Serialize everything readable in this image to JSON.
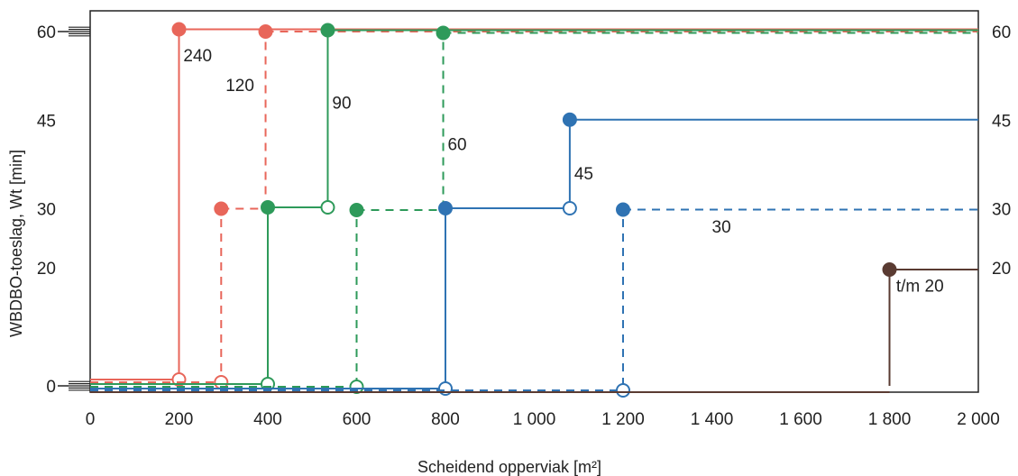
{
  "chart_data": {
    "type": "line",
    "step": true,
    "xlabel": "Scheidend opperviak [m²]",
    "ylabel": "WBDBO-toeslag, Wt [min]",
    "xlim": [
      0,
      2000
    ],
    "x_ticks": [
      0,
      200,
      400,
      600,
      800,
      1000,
      1200,
      1400,
      1600,
      1800,
      2000
    ],
    "x_tick_labels": [
      "0",
      "200",
      "400",
      "600",
      "800",
      "1 000",
      "1 200",
      "1 400",
      "1 600",
      "1 800",
      "2 000"
    ],
    "y_ticks": [
      0,
      20,
      30,
      45,
      60
    ],
    "y_tick_labels_left": [
      "0",
      "20",
      "30",
      "45",
      "60"
    ],
    "y_tick_labels_right": [
      "20",
      "30",
      "45",
      "60"
    ],
    "grid": false,
    "series": [
      {
        "name": "240",
        "color": "#e8665a",
        "dash": false,
        "segments": [
          {
            "x": [
              0,
              200
            ],
            "y": [
              0,
              0
            ],
            "start_marker": null,
            "end_marker": "open"
          },
          {
            "x": [
              200,
              200
            ],
            "y": [
              0,
              60
            ],
            "start_marker": null,
            "end_marker": null
          },
          {
            "x": [
              200,
              2000
            ],
            "y": [
              60,
              60
            ],
            "start_marker": "filled",
            "end_marker": null
          }
        ]
      },
      {
        "name": "120",
        "color": "#e8665a",
        "dash": true,
        "segments": [
          {
            "x": [
              0,
              295
            ],
            "y": [
              0,
              0
            ],
            "start_marker": null,
            "end_marker": "open"
          },
          {
            "x": [
              295,
              295
            ],
            "y": [
              0,
              30
            ],
            "start_marker": null,
            "end_marker": null
          },
          {
            "x": [
              295,
              395
            ],
            "y": [
              30,
              30
            ],
            "start_marker": "filled",
            "end_marker": null
          },
          {
            "x": [
              395,
              395
            ],
            "y": [
              30,
              60
            ],
            "start_marker": null,
            "end_marker": null
          },
          {
            "x": [
              395,
              2000
            ],
            "y": [
              60,
              60
            ],
            "start_marker": "filled",
            "end_marker": null
          }
        ]
      },
      {
        "name": "90",
        "color": "#2e9a5a",
        "dash": false,
        "segments": [
          {
            "x": [
              0,
              400
            ],
            "y": [
              0,
              0
            ],
            "start_marker": null,
            "end_marker": "open"
          },
          {
            "x": [
              400,
              400
            ],
            "y": [
              0,
              30
            ],
            "start_marker": null,
            "end_marker": null
          },
          {
            "x": [
              400,
              535
            ],
            "y": [
              30,
              30
            ],
            "start_marker": "filled",
            "end_marker": "open"
          },
          {
            "x": [
              535,
              535
            ],
            "y": [
              30,
              60
            ],
            "start_marker": null,
            "end_marker": null
          },
          {
            "x": [
              535,
              2000
            ],
            "y": [
              60,
              60
            ],
            "start_marker": "filled",
            "end_marker": null
          }
        ]
      },
      {
        "name": "60",
        "color": "#2e9a5a",
        "dash": true,
        "segments": [
          {
            "x": [
              0,
              600
            ],
            "y": [
              0,
              0
            ],
            "start_marker": null,
            "end_marker": "open"
          },
          {
            "x": [
              600,
              600
            ],
            "y": [
              0,
              30
            ],
            "start_marker": null,
            "end_marker": null
          },
          {
            "x": [
              600,
              795
            ],
            "y": [
              30,
              30
            ],
            "start_marker": "filled",
            "end_marker": null
          },
          {
            "x": [
              795,
              795
            ],
            "y": [
              30,
              60
            ],
            "start_marker": null,
            "end_marker": null
          },
          {
            "x": [
              795,
              2000
            ],
            "y": [
              60,
              60
            ],
            "start_marker": "filled",
            "end_marker": null
          }
        ]
      },
      {
        "name": "45",
        "color": "#2f73b3",
        "dash": false,
        "segments": [
          {
            "x": [
              0,
              800
            ],
            "y": [
              0,
              0
            ],
            "start_marker": null,
            "end_marker": "open"
          },
          {
            "x": [
              800,
              800
            ],
            "y": [
              0,
              30
            ],
            "start_marker": null,
            "end_marker": null
          },
          {
            "x": [
              800,
              1080
            ],
            "y": [
              30,
              30
            ],
            "start_marker": "filled",
            "end_marker": "open"
          },
          {
            "x": [
              1080,
              1080
            ],
            "y": [
              30,
              45
            ],
            "start_marker": null,
            "end_marker": null
          },
          {
            "x": [
              1080,
              2000
            ],
            "y": [
              45,
              45
            ],
            "start_marker": "filled",
            "end_marker": null
          }
        ]
      },
      {
        "name": "30",
        "color": "#2f73b3",
        "dash": true,
        "segments": [
          {
            "x": [
              0,
              1200
            ],
            "y": [
              0,
              0
            ],
            "start_marker": null,
            "end_marker": "open"
          },
          {
            "x": [
              1200,
              1200
            ],
            "y": [
              0,
              30
            ],
            "start_marker": null,
            "end_marker": null
          },
          {
            "x": [
              1200,
              2000
            ],
            "y": [
              30,
              30
            ],
            "start_marker": "filled",
            "end_marker": null
          }
        ]
      },
      {
        "name": "t/m 20",
        "color": "#5a3b32",
        "dash": false,
        "segments": [
          {
            "x": [
              0,
              1800
            ],
            "y": [
              0,
              0
            ],
            "start_marker": null,
            "end_marker": null
          },
          {
            "x": [
              1800,
              1800
            ],
            "y": [
              0,
              20
            ],
            "start_marker": null,
            "end_marker": null
          },
          {
            "x": [
              1800,
              2000
            ],
            "y": [
              20,
              20
            ],
            "start_marker": "filled",
            "end_marker": null
          }
        ]
      }
    ],
    "annotations": [
      {
        "text": "240",
        "x": 210,
        "y": 56
      },
      {
        "text": "120",
        "x": 305,
        "y": 51
      },
      {
        "text": "90",
        "x": 545,
        "y": 48
      },
      {
        "text": "60",
        "x": 805,
        "y": 41
      },
      {
        "text": "45",
        "x": 1090,
        "y": 36
      },
      {
        "text": "30",
        "x": 1400,
        "y": 27
      },
      {
        "text": "t/m 20",
        "x": 1815,
        "y": 17
      }
    ]
  }
}
